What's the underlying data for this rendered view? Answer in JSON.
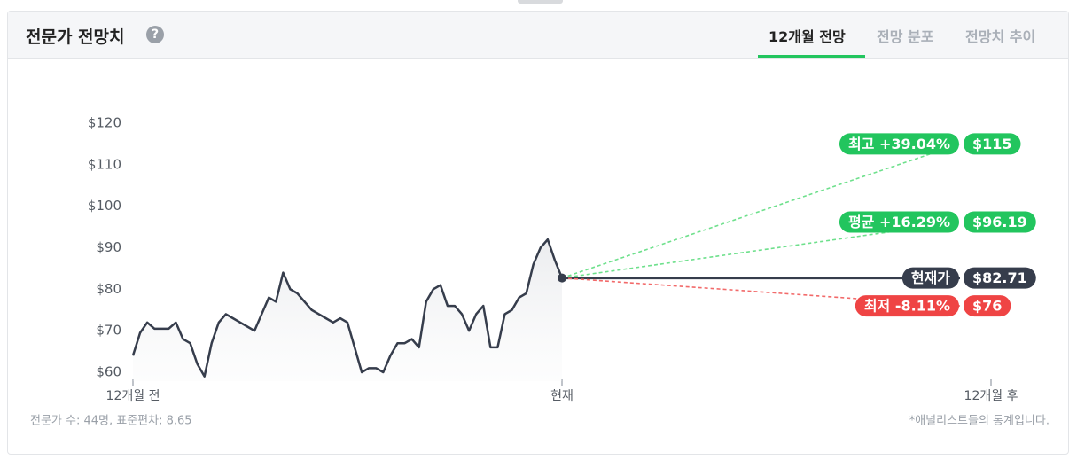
{
  "header": {
    "title": "전문가 전망치",
    "help": "?",
    "tabs": [
      "12개월 전망",
      "전망 분포",
      "전망치 추이"
    ]
  },
  "chart_data": {
    "type": "line",
    "x": [
      -12,
      -11.8,
      -11.6,
      -11.4,
      -11.2,
      -11,
      -10.8,
      -10.6,
      -10.4,
      -10.2,
      -10,
      -9.8,
      -9.6,
      -9.4,
      -9.2,
      -9,
      -8.8,
      -8.6,
      -8.4,
      -8.2,
      -8,
      -7.8,
      -7.6,
      -7.4,
      -7.2,
      -7,
      -6.8,
      -6.6,
      -6.4,
      -6.2,
      -6,
      -5.8,
      -5.6,
      -5.4,
      -5.2,
      -5,
      -4.8,
      -4.6,
      -4.4,
      -4.2,
      -4,
      -3.8,
      -3.6,
      -3.4,
      -3.2,
      -3,
      -2.8,
      -2.6,
      -2.4,
      -2.2,
      -2,
      -1.8,
      -1.6,
      -1.4,
      -1.2,
      -1,
      -0.8,
      -0.6,
      -0.4,
      -0.2,
      0
    ],
    "series": [
      {
        "color": "#363d4c",
        "values": [
          64,
          69.5,
          72,
          70.5,
          70.5,
          70.5,
          72,
          68,
          67,
          62,
          59,
          67,
          72,
          74,
          73,
          72,
          71,
          70,
          74,
          78,
          77,
          84,
          80,
          79,
          77,
          75,
          74,
          73,
          72,
          73,
          72,
          66,
          60,
          61,
          61,
          60,
          64,
          67,
          67,
          68,
          66,
          77,
          80,
          81,
          76,
          76,
          74,
          70,
          74,
          76,
          66,
          66,
          74,
          75,
          78,
          79,
          86,
          90,
          92,
          87,
          82.71
        ]
      }
    ],
    "forecasts": [
      {
        "label": "최고 +39.04%",
        "value": 115,
        "value_label": "$115",
        "color": "#22c55e",
        "line_color": "#6ee08c"
      },
      {
        "label": "평균 +16.29%",
        "value": 96.19,
        "value_label": "$96.19",
        "color": "#22c55e",
        "line_color": "#6ee08c"
      },
      {
        "label": "현재가",
        "value": 82.71,
        "value_label": "$82.71",
        "color": "#363d4c",
        "line_color": "#363d4c"
      },
      {
        "label": "최저 -8.11%",
        "value": 76,
        "value_label": "$76",
        "color": "#ef4444",
        "line_color": "#f26a6a"
      }
    ],
    "xlim": [
      -12,
      12
    ],
    "xticks": [
      {
        "value": -12,
        "label": "12개월 전"
      },
      {
        "value": 0,
        "label": "현재"
      },
      {
        "value": 12,
        "label": "12개월 후"
      }
    ],
    "ylim": [
      60,
      120
    ],
    "yticks": [
      {
        "value": 60,
        "label": "$60"
      },
      {
        "value": 70,
        "label": "$70"
      },
      {
        "value": 80,
        "label": "$80"
      },
      {
        "value": 90,
        "label": "$90"
      },
      {
        "value": 100,
        "label": "$100"
      },
      {
        "value": 110,
        "label": "$110"
      },
      {
        "value": 120,
        "label": "$120"
      }
    ]
  },
  "footer": {
    "left": "전문가 수: 44명, 표준편차: 8.65",
    "right": "*애널리스트들의 통계입니다."
  }
}
